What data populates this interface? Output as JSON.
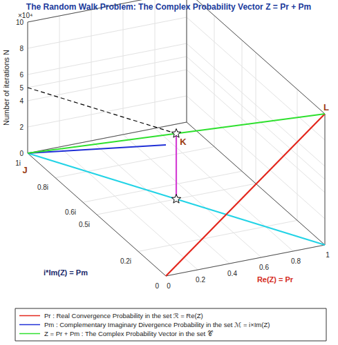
{
  "chart_data": {
    "type": "line3d",
    "title": "The Random Walk Problem: The Complex Probability Vector Z = Pr + Pm",
    "x_label": "Re(Z) = Pr",
    "y_label": "i*Im(Z) = Pm",
    "z_label": "Number of iterations N",
    "z_scale_label": "×10⁴",
    "xlim": [
      0,
      1
    ],
    "xticks": [
      0,
      0.2,
      0.4,
      0.6,
      0.8,
      1
    ],
    "ylim": [
      0,
      1
    ],
    "yticks": [
      0,
      {
        "value": 0.2,
        "label": "0.2i"
      },
      {
        "value": 0.5,
        "label": "0.5i"
      },
      {
        "value": 0.6,
        "label": "0.6i"
      },
      {
        "value": 0.8,
        "label": "0.8i"
      },
      {
        "value": 1,
        "label": "1i"
      }
    ],
    "zlim": [
      0,
      100000
    ],
    "zticks": [
      0,
      {
        "value": 20000,
        "label": "2"
      },
      {
        "value": 40000,
        "label": "4"
      },
      {
        "value": 50000,
        "label": "5"
      },
      {
        "value": 60000,
        "label": "6"
      },
      {
        "value": 80000,
        "label": "8"
      },
      {
        "value": 100000,
        "label": "10"
      }
    ],
    "grid": true,
    "series": [
      {
        "name": "Pr : Real Convergence Probability in the set ℛ = Re(Z)",
        "color": "#e3261c",
        "x": [
          0,
          1
        ],
        "y": [
          0,
          0
        ],
        "z": [
          0,
          100000
        ]
      },
      {
        "name": "Pm : Complementary Imaginary Divergence Probability in the set ℳ = i×Im(Z)",
        "color": "#1f2fd6",
        "x": [
          0,
          0
        ],
        "y": [
          1,
          0
        ],
        "z": [
          0,
          100000
        ]
      },
      {
        "name": "Z = Pr + Pm : The Complex Probability Vector in the set 𝒞",
        "color": "#2ee02e",
        "x": [
          0,
          1
        ],
        "y": [
          1,
          0
        ],
        "z": [
          0,
          100000
        ]
      },
      {
        "color": "#22d3e6",
        "x": [
          0,
          1
        ],
        "y": [
          1,
          0
        ],
        "z": [
          0,
          0
        ]
      },
      {
        "color": "#d43fd4",
        "marker": "star",
        "x": [
          0.5,
          0.5
        ],
        "y": [
          0.5,
          0.5
        ],
        "z": [
          50000,
          0
        ]
      },
      {
        "color": "#000000",
        "line_style": "dashed",
        "x": [
          0,
          0.5
        ],
        "y": [
          1,
          0.5
        ],
        "z": [
          50000,
          50000
        ]
      }
    ],
    "annotations": [
      {
        "text": "J",
        "x": 0,
        "y": 1,
        "z": 0
      },
      {
        "text": "K",
        "x": 0.5,
        "y": 0.5,
        "z": 50000
      },
      {
        "text": "L",
        "x": 1,
        "y": 0,
        "z": 100000
      }
    ]
  }
}
